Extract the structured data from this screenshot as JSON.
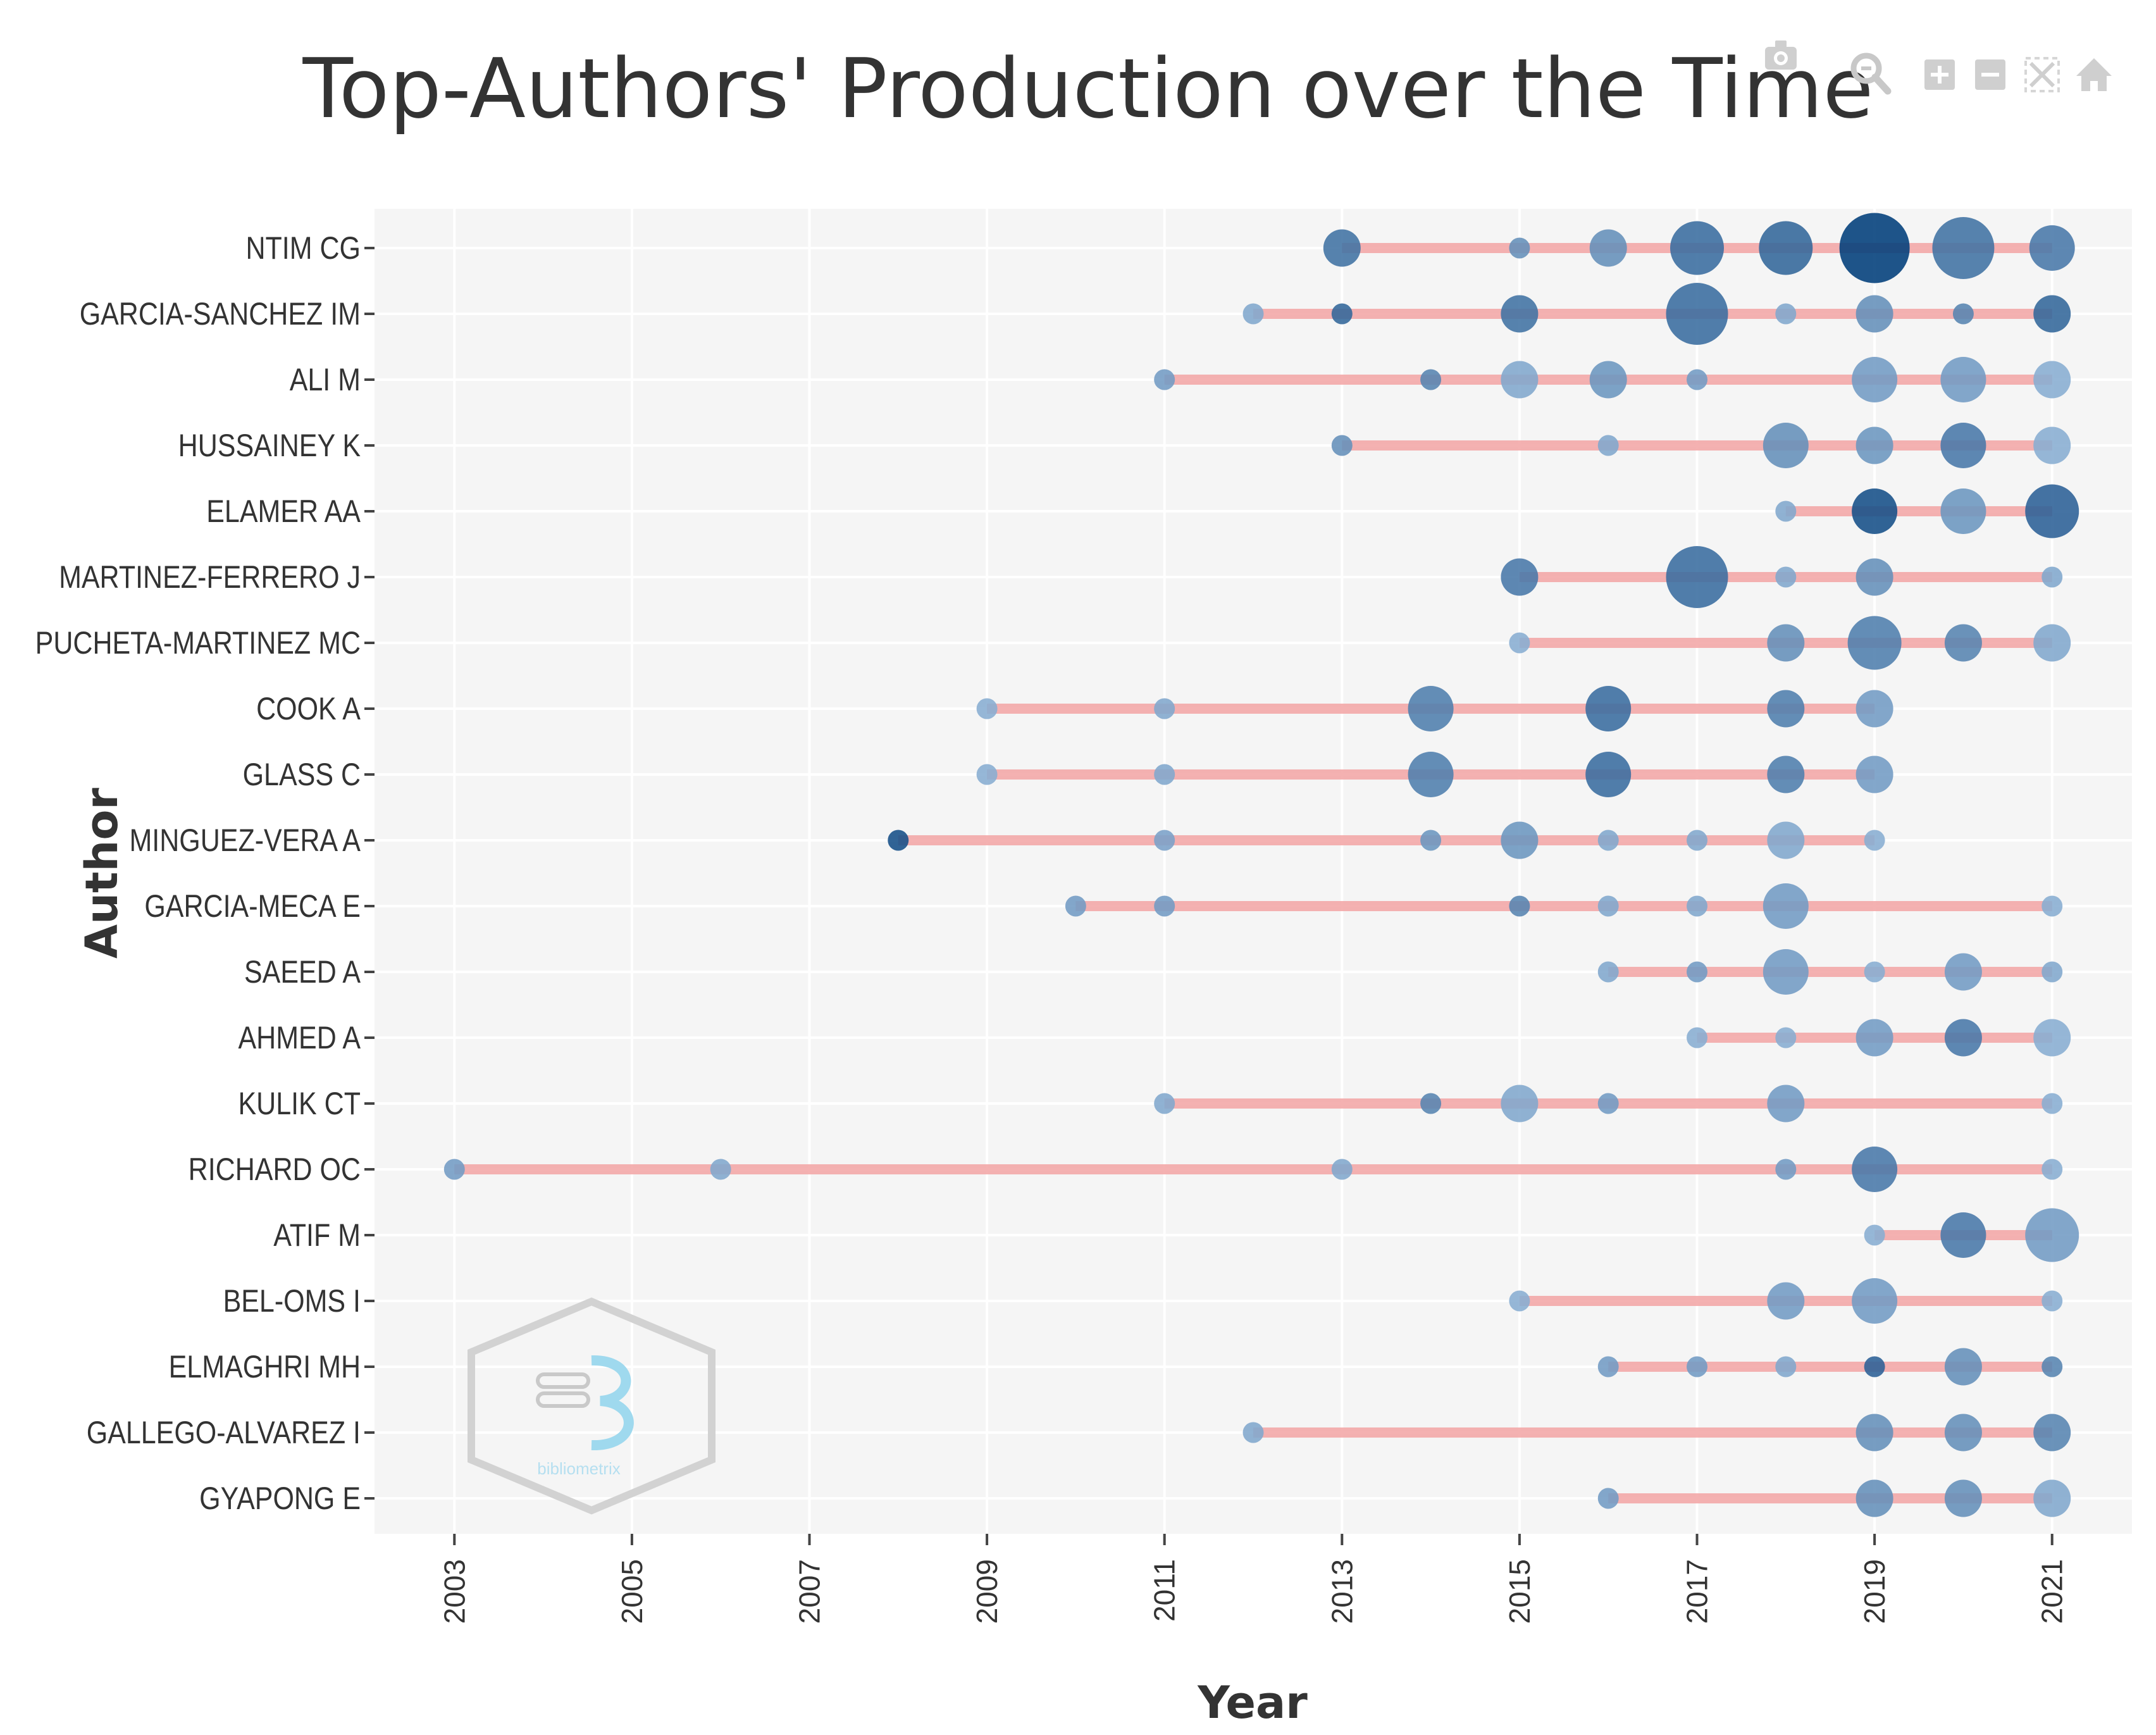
{
  "toolbar": {
    "buttons": [
      {
        "name": "camera-icon",
        "label": "Download plot as a png"
      },
      {
        "name": "zoom-icon",
        "label": "Zoom"
      },
      {
        "name": "zoom-in-icon",
        "label": "Zoom in"
      },
      {
        "name": "zoom-out-icon",
        "label": "Zoom out"
      },
      {
        "name": "autoscale-icon",
        "label": "Autoscale"
      },
      {
        "name": "home-icon",
        "label": "Reset axes"
      }
    ]
  },
  "logo": {
    "text": "bibliometrix"
  },
  "colors": {
    "background": "#ffffff",
    "plot_background": "#f5f5f5",
    "grid": "#ffffff",
    "segment": "#f2a3a3",
    "bubble_light": "#8fb3d6",
    "bubble_dark": "#003d7a"
  },
  "chart_data": {
    "type": "scatter",
    "title": "Top-Authors' Production over the Time",
    "xlabel": "Year",
    "ylabel": "Author",
    "xlim": [
      2002.1,
      2021.9
    ],
    "xticks": [
      2003,
      2005,
      2007,
      2009,
      2011,
      2013,
      2015,
      2017,
      2019,
      2021
    ],
    "authors": [
      "NTIM CG",
      "GARCIA-SANCHEZ IM",
      "ALI M",
      "HUSSAINEY K",
      "ELAMER AA",
      "MARTINEZ-FERRERO J",
      "PUCHETA-MARTINEZ MC",
      "COOK A",
      "GLASS C",
      "MINGUEZ-VERA A",
      "GARCIA-MECA E",
      "SAEED A",
      "AHMED A",
      "KULIK CT",
      "RICHARD OC",
      "ATIF M",
      "BEL-OMS I",
      "ELMAGHRI MH",
      "GALLEGO-ALVAREZ I",
      "GYAPONG E"
    ],
    "series": [
      {
        "author": "NTIM CG",
        "start": 2013,
        "end": 2021,
        "points": [
          {
            "year": 2013,
            "articles": 3,
            "tc": 0.55
          },
          {
            "year": 2015,
            "articles": 1,
            "tc": 0.3
          },
          {
            "year": 2016,
            "articles": 3,
            "tc": 0.3
          },
          {
            "year": 2017,
            "articles": 5,
            "tc": 0.6
          },
          {
            "year": 2018,
            "articles": 5,
            "tc": 0.65
          },
          {
            "year": 2019,
            "articles": 7,
            "tc": 1.0
          },
          {
            "year": 2020,
            "articles": 6,
            "tc": 0.55
          },
          {
            "year": 2021,
            "articles": 4,
            "tc": 0.5
          }
        ]
      },
      {
        "author": "GARCIA-SANCHEZ IM",
        "start": 2012,
        "end": 2021,
        "points": [
          {
            "year": 2012,
            "articles": 1,
            "tc": 0.1
          },
          {
            "year": 2013,
            "articles": 1,
            "tc": 0.65
          },
          {
            "year": 2015,
            "articles": 3,
            "tc": 0.55
          },
          {
            "year": 2017,
            "articles": 6,
            "tc": 0.6
          },
          {
            "year": 2018,
            "articles": 1,
            "tc": 0.1
          },
          {
            "year": 2019,
            "articles": 3,
            "tc": 0.3
          },
          {
            "year": 2020,
            "articles": 1,
            "tc": 0.4
          },
          {
            "year": 2021,
            "articles": 3,
            "tc": 0.65
          }
        ]
      },
      {
        "author": "ALI M",
        "start": 2011,
        "end": 2021,
        "points": [
          {
            "year": 2011,
            "articles": 1,
            "tc": 0.2
          },
          {
            "year": 2014,
            "articles": 1,
            "tc": 0.4
          },
          {
            "year": 2015,
            "articles": 3,
            "tc": 0.1
          },
          {
            "year": 2016,
            "articles": 3,
            "tc": 0.25
          },
          {
            "year": 2017,
            "articles": 1,
            "tc": 0.2
          },
          {
            "year": 2019,
            "articles": 4,
            "tc": 0.2
          },
          {
            "year": 2020,
            "articles": 4,
            "tc": 0.2
          },
          {
            "year": 2021,
            "articles": 3,
            "tc": 0.05
          }
        ]
      },
      {
        "author": "HUSSAINEY K",
        "start": 2013,
        "end": 2021,
        "points": [
          {
            "year": 2013,
            "articles": 1,
            "tc": 0.3
          },
          {
            "year": 2016,
            "articles": 1,
            "tc": 0.1
          },
          {
            "year": 2018,
            "articles": 4,
            "tc": 0.3
          },
          {
            "year": 2019,
            "articles": 3,
            "tc": 0.25
          },
          {
            "year": 2020,
            "articles": 4,
            "tc": 0.5
          },
          {
            "year": 2021,
            "articles": 3,
            "tc": 0.05
          }
        ]
      },
      {
        "author": "ELAMER AA",
        "start": 2018,
        "end": 2021,
        "points": [
          {
            "year": 2018,
            "articles": 1,
            "tc": 0.1
          },
          {
            "year": 2019,
            "articles": 4,
            "tc": 0.85
          },
          {
            "year": 2020,
            "articles": 4,
            "tc": 0.25
          },
          {
            "year": 2021,
            "articles": 5,
            "tc": 0.7
          }
        ]
      },
      {
        "author": "MARTINEZ-FERRERO J",
        "start": 2015,
        "end": 2021,
        "points": [
          {
            "year": 2015,
            "articles": 3,
            "tc": 0.5
          },
          {
            "year": 2017,
            "articles": 6,
            "tc": 0.6
          },
          {
            "year": 2018,
            "articles": 1,
            "tc": 0.1
          },
          {
            "year": 2019,
            "articles": 3,
            "tc": 0.3
          },
          {
            "year": 2021,
            "articles": 1,
            "tc": 0.1
          }
        ]
      },
      {
        "author": "PUCHETA-MARTINEZ MC",
        "start": 2015,
        "end": 2021,
        "points": [
          {
            "year": 2015,
            "articles": 1,
            "tc": 0.05
          },
          {
            "year": 2018,
            "articles": 3,
            "tc": 0.3
          },
          {
            "year": 2019,
            "articles": 5,
            "tc": 0.45
          },
          {
            "year": 2020,
            "articles": 3,
            "tc": 0.4
          },
          {
            "year": 2021,
            "articles": 3,
            "tc": 0.1
          }
        ]
      },
      {
        "author": "COOK A",
        "start": 2009,
        "end": 2019,
        "points": [
          {
            "year": 2009,
            "articles": 1,
            "tc": 0.05
          },
          {
            "year": 2011,
            "articles": 1,
            "tc": 0.1
          },
          {
            "year": 2014,
            "articles": 4,
            "tc": 0.45
          },
          {
            "year": 2016,
            "articles": 4,
            "tc": 0.6
          },
          {
            "year": 2018,
            "articles": 3,
            "tc": 0.45
          },
          {
            "year": 2019,
            "articles": 3,
            "tc": 0.2
          }
        ]
      },
      {
        "author": "GLASS C",
        "start": 2009,
        "end": 2019,
        "points": [
          {
            "year": 2009,
            "articles": 1,
            "tc": 0.05
          },
          {
            "year": 2011,
            "articles": 1,
            "tc": 0.1
          },
          {
            "year": 2014,
            "articles": 4,
            "tc": 0.45
          },
          {
            "year": 2016,
            "articles": 4,
            "tc": 0.6
          },
          {
            "year": 2018,
            "articles": 3,
            "tc": 0.45
          },
          {
            "year": 2019,
            "articles": 3,
            "tc": 0.2
          }
        ]
      },
      {
        "author": "MINGUEZ-VERA A",
        "start": 2008,
        "end": 2019,
        "points": [
          {
            "year": 2008,
            "articles": 1,
            "tc": 0.85
          },
          {
            "year": 2011,
            "articles": 1,
            "tc": 0.15
          },
          {
            "year": 2014,
            "articles": 1,
            "tc": 0.25
          },
          {
            "year": 2015,
            "articles": 3,
            "tc": 0.25
          },
          {
            "year": 2016,
            "articles": 1,
            "tc": 0.1
          },
          {
            "year": 2017,
            "articles": 1,
            "tc": 0.1
          },
          {
            "year": 2018,
            "articles": 3,
            "tc": 0.1
          },
          {
            "year": 2019,
            "articles": 1,
            "tc": 0.05
          }
        ]
      },
      {
        "author": "GARCIA-MECA E",
        "start": 2010,
        "end": 2021,
        "points": [
          {
            "year": 2010,
            "articles": 1,
            "tc": 0.2
          },
          {
            "year": 2011,
            "articles": 1,
            "tc": 0.2
          },
          {
            "year": 2015,
            "articles": 1,
            "tc": 0.4
          },
          {
            "year": 2016,
            "articles": 1,
            "tc": 0.1
          },
          {
            "year": 2017,
            "articles": 1,
            "tc": 0.1
          },
          {
            "year": 2018,
            "articles": 4,
            "tc": 0.2
          },
          {
            "year": 2021,
            "articles": 1,
            "tc": 0.05
          }
        ]
      },
      {
        "author": "SAEED A",
        "start": 2016,
        "end": 2021,
        "points": [
          {
            "year": 2016,
            "articles": 1,
            "tc": 0.1
          },
          {
            "year": 2017,
            "articles": 1,
            "tc": 0.2
          },
          {
            "year": 2018,
            "articles": 4,
            "tc": 0.2
          },
          {
            "year": 2019,
            "articles": 1,
            "tc": 0.05
          },
          {
            "year": 2020,
            "articles": 3,
            "tc": 0.2
          },
          {
            "year": 2021,
            "articles": 1,
            "tc": 0.1
          }
        ]
      },
      {
        "author": "AHMED A",
        "start": 2017,
        "end": 2021,
        "points": [
          {
            "year": 2017,
            "articles": 1,
            "tc": 0.05
          },
          {
            "year": 2018,
            "articles": 1,
            "tc": 0.05
          },
          {
            "year": 2019,
            "articles": 3,
            "tc": 0.2
          },
          {
            "year": 2020,
            "articles": 3,
            "tc": 0.5
          },
          {
            "year": 2021,
            "articles": 3,
            "tc": 0.05
          }
        ]
      },
      {
        "author": "KULIK CT",
        "start": 2011,
        "end": 2021,
        "points": [
          {
            "year": 2011,
            "articles": 1,
            "tc": 0.1
          },
          {
            "year": 2014,
            "articles": 1,
            "tc": 0.4
          },
          {
            "year": 2015,
            "articles": 3,
            "tc": 0.1
          },
          {
            "year": 2016,
            "articles": 1,
            "tc": 0.2
          },
          {
            "year": 2018,
            "articles": 3,
            "tc": 0.2
          },
          {
            "year": 2021,
            "articles": 1,
            "tc": 0.05
          }
        ]
      },
      {
        "author": "RICHARD OC",
        "start": 2003,
        "end": 2021,
        "points": [
          {
            "year": 2003,
            "articles": 1,
            "tc": 0.2
          },
          {
            "year": 2006,
            "articles": 1,
            "tc": 0.1
          },
          {
            "year": 2013,
            "articles": 1,
            "tc": 0.1
          },
          {
            "year": 2018,
            "articles": 1,
            "tc": 0.2
          },
          {
            "year": 2019,
            "articles": 4,
            "tc": 0.5
          },
          {
            "year": 2021,
            "articles": 1,
            "tc": 0.05
          }
        ]
      },
      {
        "author": "ATIF M",
        "start": 2019,
        "end": 2021,
        "points": [
          {
            "year": 2019,
            "articles": 1,
            "tc": 0.05
          },
          {
            "year": 2020,
            "articles": 4,
            "tc": 0.5
          },
          {
            "year": 2021,
            "articles": 5,
            "tc": 0.2
          }
        ]
      },
      {
        "author": "BEL-OMS I",
        "start": 2015,
        "end": 2021,
        "points": [
          {
            "year": 2015,
            "articles": 1,
            "tc": 0.05
          },
          {
            "year": 2018,
            "articles": 3,
            "tc": 0.2
          },
          {
            "year": 2019,
            "articles": 4,
            "tc": 0.2
          },
          {
            "year": 2021,
            "articles": 1,
            "tc": 0.05
          }
        ]
      },
      {
        "author": "ELMAGHRI MH",
        "start": 2016,
        "end": 2021,
        "points": [
          {
            "year": 2016,
            "articles": 1,
            "tc": 0.2
          },
          {
            "year": 2017,
            "articles": 1,
            "tc": 0.2
          },
          {
            "year": 2018,
            "articles": 1,
            "tc": 0.1
          },
          {
            "year": 2019,
            "articles": 1,
            "tc": 0.7
          },
          {
            "year": 2020,
            "articles": 3,
            "tc": 0.3
          },
          {
            "year": 2021,
            "articles": 1,
            "tc": 0.4
          }
        ]
      },
      {
        "author": "GALLEGO-ALVAREZ I",
        "start": 2012,
        "end": 2021,
        "points": [
          {
            "year": 2012,
            "articles": 1,
            "tc": 0.1
          },
          {
            "year": 2019,
            "articles": 3,
            "tc": 0.3
          },
          {
            "year": 2020,
            "articles": 3,
            "tc": 0.3
          },
          {
            "year": 2021,
            "articles": 3,
            "tc": 0.4
          }
        ]
      },
      {
        "author": "GYAPONG E",
        "start": 2016,
        "end": 2021,
        "points": [
          {
            "year": 2016,
            "articles": 1,
            "tc": 0.2
          },
          {
            "year": 2019,
            "articles": 3,
            "tc": 0.3
          },
          {
            "year": 2020,
            "articles": 3,
            "tc": 0.3
          },
          {
            "year": 2021,
            "articles": 3,
            "tc": 0.1
          }
        ]
      }
    ]
  }
}
